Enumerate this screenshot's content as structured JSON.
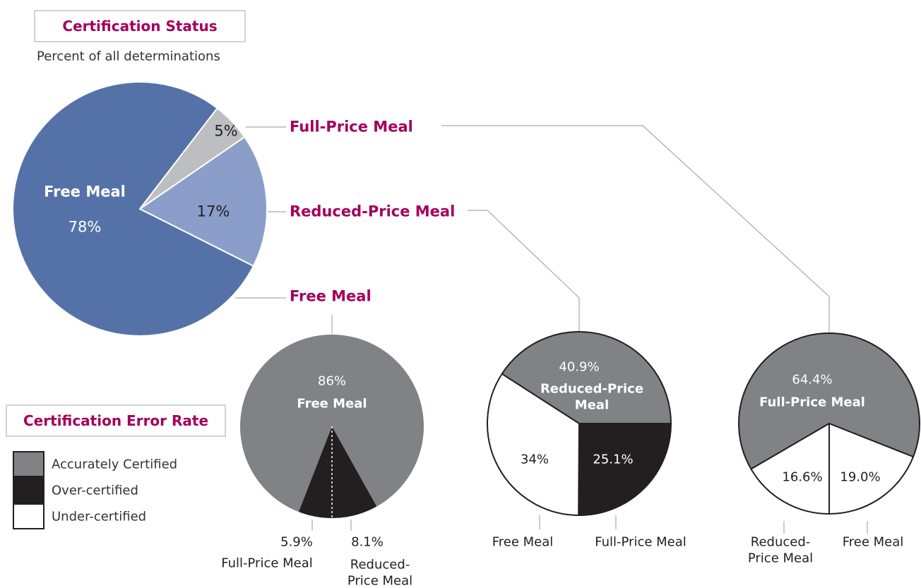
{
  "chart_data": [
    {
      "type": "pie",
      "title": "Certification Status",
      "subtitle": "Percent of all determinations",
      "categories": [
        "Full-Price Meal",
        "Reduced-Price Meal",
        "Free Meal"
      ],
      "values": [
        5,
        17,
        78
      ],
      "value_labels": [
        "5%",
        "17%",
        "78%"
      ],
      "colors": [
        "#bcbec0",
        "#8b9dc9",
        "#5572a8"
      ]
    },
    {
      "type": "pie",
      "categories": [
        "Free Meal",
        "Reduced-Price Meal",
        "Full-Price Meal"
      ],
      "values": [
        86,
        8.1,
        5.9
      ],
      "value_labels": [
        "86%",
        "8.1%",
        "5.9%"
      ],
      "colors": [
        "#808285",
        "#231f20",
        "#231f20"
      ]
    },
    {
      "type": "pie",
      "categories": [
        "Reduced-Price Meal",
        "Full-Price Meal",
        "Free Meal"
      ],
      "values": [
        40.9,
        25.1,
        34
      ],
      "value_labels": [
        "40.9%",
        "25.1%",
        "34%"
      ],
      "colors": [
        "#808285",
        "#231f20",
        "#ffffff"
      ]
    },
    {
      "type": "pie",
      "categories": [
        "Full-Price Meal",
        "Free Meal",
        "Reduced-Price Meal"
      ],
      "values": [
        64.4,
        19.0,
        16.6
      ],
      "value_labels": [
        "64.4%",
        "19.0%",
        "16.6%"
      ],
      "colors": [
        "#808285",
        "#ffffff",
        "#ffffff"
      ]
    }
  ],
  "legend": {
    "title": "Certification Error Rate",
    "items": [
      {
        "name": "Accurately Certified",
        "color": "#808285"
      },
      {
        "name": "Over-certified",
        "color": "#231f20"
      },
      {
        "name": "Under-certified",
        "color": "#ffffff"
      }
    ]
  }
}
